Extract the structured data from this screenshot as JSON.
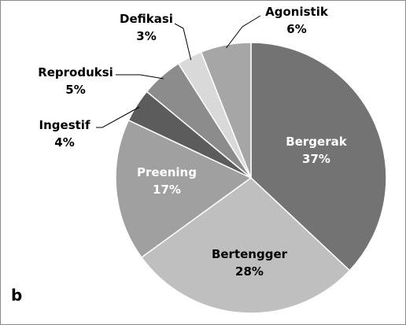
{
  "panel_label": "b",
  "chart_data": {
    "type": "pie",
    "start_angle": "12 o'clock",
    "direction": "clockwise",
    "slices": [
      {
        "label": "Bergerak",
        "value": 37,
        "value_text": "37%",
        "color": "#737373",
        "text_color": "#ffffff"
      },
      {
        "label": "Bertengger",
        "value": 28,
        "value_text": "28%",
        "color": "#bfbfbf",
        "text_color": "#000000"
      },
      {
        "label": "Preening",
        "value": 17,
        "value_text": "17%",
        "color": "#a0a0a0",
        "text_color": "#ffffff"
      },
      {
        "label": "Ingestif",
        "value": 4,
        "value_text": "4%",
        "color": "#5c5c5c",
        "text_color": "#000000"
      },
      {
        "label": "Reproduksi",
        "value": 5,
        "value_text": "5%",
        "color": "#8c8c8c",
        "text_color": "#000000"
      },
      {
        "label": "Defikasi",
        "value": 3,
        "value_text": "3%",
        "color": "#d9d9d9",
        "text_color": "#000000"
      },
      {
        "label": "Agonistik",
        "value": 6,
        "value_text": "6%",
        "color": "#a6a6a6",
        "text_color": "#000000"
      }
    ]
  }
}
